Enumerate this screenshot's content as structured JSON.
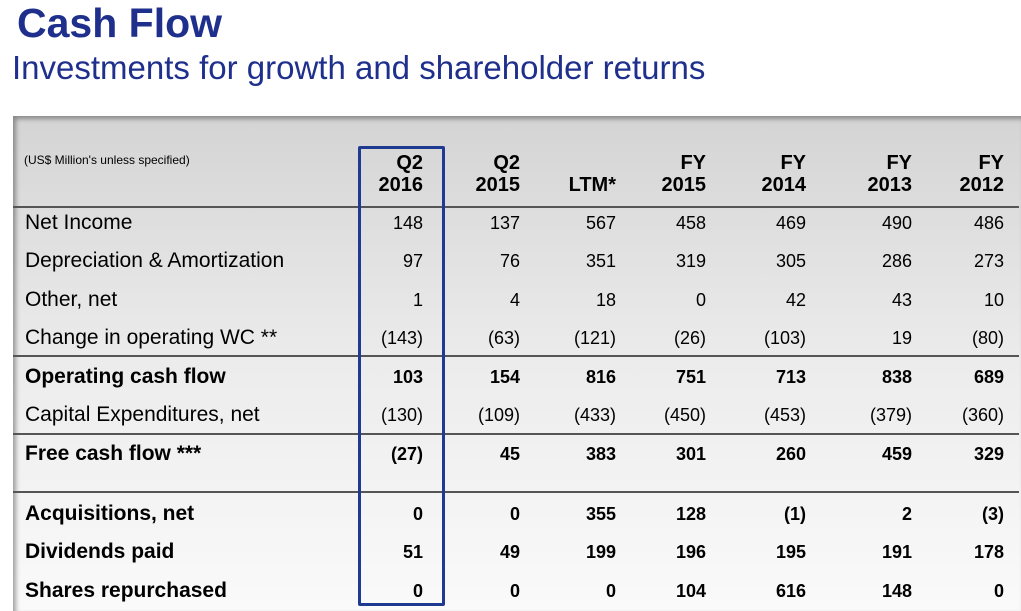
{
  "header": {
    "title": "Cash Flow",
    "subtitle": "Investments for growth and shareholder returns"
  },
  "table": {
    "units_note": "(US$ Million's unless specified)",
    "columns": [
      {
        "line1": "Q2",
        "line2": "2016"
      },
      {
        "line1": "Q2",
        "line2": "2015"
      },
      {
        "line1": "",
        "line2": "LTM*"
      },
      {
        "line1": "FY",
        "line2": "2015"
      },
      {
        "line1": "FY",
        "line2": "2014"
      },
      {
        "line1": "FY",
        "line2": "2013"
      },
      {
        "line1": "FY",
        "line2": "2012"
      }
    ],
    "highlighted_column": "Q2 2016",
    "rows": [
      {
        "label": "Net Income",
        "bold": false,
        "values": [
          "148",
          "137",
          "567",
          "458",
          "469",
          "490",
          "486"
        ]
      },
      {
        "label": "Depreciation & Amortization",
        "bold": false,
        "values": [
          "97",
          "76",
          "351",
          "319",
          "305",
          "286",
          "273"
        ]
      },
      {
        "label": "Other, net",
        "bold": false,
        "values": [
          "1",
          "4",
          "18",
          "0",
          "42",
          "43",
          "10"
        ]
      },
      {
        "label": "Change in operating WC **",
        "bold": false,
        "values": [
          "(143)",
          "(63)",
          "(121)",
          "(26)",
          "(103)",
          "19",
          "(80)"
        ]
      },
      {
        "label": "Operating cash flow",
        "bold": true,
        "values": [
          "103",
          "154",
          "816",
          "751",
          "713",
          "838",
          "689"
        ]
      },
      {
        "label": "Capital Expenditures, net",
        "bold": false,
        "values": [
          "(130)",
          "(109)",
          "(433)",
          "(450)",
          "(453)",
          "(379)",
          "(360)"
        ]
      },
      {
        "label": "Free cash flow ***",
        "bold": true,
        "values": [
          "(27)",
          "45",
          "383",
          "301",
          "260",
          "459",
          "329"
        ]
      },
      {
        "label": "Acquisitions, net",
        "bold": true,
        "values": [
          "0",
          "0",
          "355",
          "128",
          "(1)",
          "2",
          "(3)"
        ]
      },
      {
        "label": "Dividends paid",
        "bold": true,
        "values": [
          "51",
          "49",
          "199",
          "196",
          "195",
          "191",
          "178"
        ]
      },
      {
        "label": "Shares repurchased",
        "bold": true,
        "values": [
          "0",
          "0",
          "0",
          "104",
          "616",
          "148",
          "0"
        ]
      }
    ]
  },
  "colors": {
    "title": "#1f2f8c",
    "highlight_border": "#1f3a93",
    "rule": "#555555"
  }
}
